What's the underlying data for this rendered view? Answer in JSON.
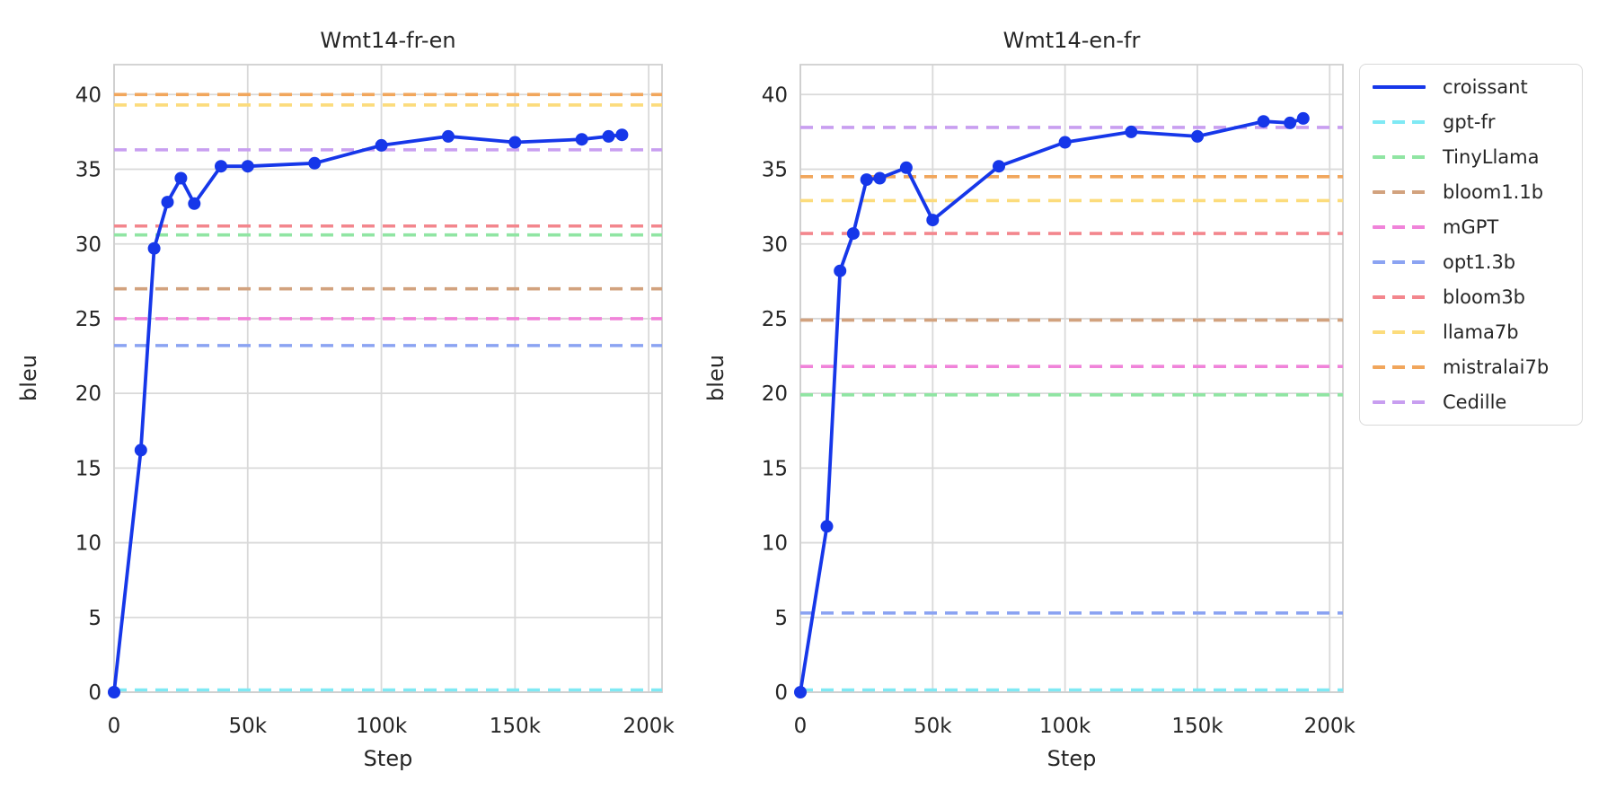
{
  "figure": {
    "background": "#ffffff",
    "grid_color": "#d9d9d9",
    "spine_color": "#cfcfcf",
    "tick_color": "#262626",
    "title_color": "#262626"
  },
  "chart_data": [
    {
      "type": "line",
      "title": "Wmt14-fr-en",
      "xlabel": "Step",
      "ylabel": "bleu",
      "xlim": [
        0,
        205000
      ],
      "ylim": [
        0,
        42
      ],
      "grid": true,
      "legend_position": "outside-right",
      "xticks": {
        "values": [
          0,
          50000,
          100000,
          150000,
          200000
        ],
        "labels": [
          "0",
          "50k",
          "100k",
          "150k",
          "200k"
        ]
      },
      "yticks": {
        "values": [
          0,
          5,
          10,
          15,
          20,
          25,
          30,
          35,
          40
        ],
        "labels": [
          "0",
          "5",
          "10",
          "15",
          "20",
          "25",
          "30",
          "35",
          "40"
        ]
      },
      "series": [
        {
          "name": "croissant",
          "color": "#1637e9",
          "style": "solid",
          "marker": "circle",
          "x": [
            0,
            10000,
            15000,
            20000,
            25000,
            30000,
            40000,
            50000,
            75000,
            100000,
            125000,
            150000,
            175000,
            185000,
            190000
          ],
          "y": [
            0,
            16.2,
            29.7,
            32.8,
            34.4,
            32.7,
            35.2,
            35.2,
            35.4,
            36.6,
            37.2,
            36.8,
            37.0,
            37.2,
            37.3
          ]
        }
      ],
      "baselines": [
        {
          "name": "gpt-fr",
          "color": "#7fe9f4",
          "y": 0.15
        },
        {
          "name": "TinyLlama",
          "color": "#90e5a3",
          "y": 30.6
        },
        {
          "name": "bloom1.1b",
          "color": "#d2a27e",
          "y": 27.0
        },
        {
          "name": "mGPT",
          "color": "#f083d9",
          "y": 25.0
        },
        {
          "name": "opt1.3b",
          "color": "#8ba3f2",
          "y": 23.2
        },
        {
          "name": "bloom3b",
          "color": "#f3868d",
          "y": 31.2
        },
        {
          "name": "llama7b",
          "color": "#fcdc7c",
          "y": 39.3
        },
        {
          "name": "mistralai7b",
          "color": "#f1a65c",
          "y": 40.0
        },
        {
          "name": "Cedille",
          "color": "#c89ef0",
          "y": 36.3
        }
      ]
    },
    {
      "type": "line",
      "title": "Wmt14-en-fr",
      "xlabel": "Step",
      "ylabel": "bleu",
      "xlim": [
        0,
        205000
      ],
      "ylim": [
        0,
        42
      ],
      "grid": true,
      "legend_position": "outside-right",
      "xticks": {
        "values": [
          0,
          50000,
          100000,
          150000,
          200000
        ],
        "labels": [
          "0",
          "50k",
          "100k",
          "150k",
          "200k"
        ]
      },
      "yticks": {
        "values": [
          0,
          5,
          10,
          15,
          20,
          25,
          30,
          35,
          40
        ],
        "labels": [
          "0",
          "5",
          "10",
          "15",
          "20",
          "25",
          "30",
          "35",
          "40"
        ]
      },
      "series": [
        {
          "name": "croissant",
          "color": "#1637e9",
          "style": "solid",
          "marker": "circle",
          "x": [
            0,
            10000,
            15000,
            20000,
            25000,
            30000,
            40000,
            50000,
            75000,
            100000,
            125000,
            150000,
            175000,
            185000,
            190000
          ],
          "y": [
            0,
            11.1,
            28.2,
            30.7,
            34.3,
            34.4,
            35.1,
            31.6,
            35.2,
            36.8,
            37.5,
            37.2,
            38.2,
            38.1,
            38.4
          ]
        }
      ],
      "baselines": [
        {
          "name": "gpt-fr",
          "color": "#7fe9f4",
          "y": 0.15
        },
        {
          "name": "TinyLlama",
          "color": "#90e5a3",
          "y": 19.9
        },
        {
          "name": "bloom1.1b",
          "color": "#d2a27e",
          "y": 24.9
        },
        {
          "name": "mGPT",
          "color": "#f083d9",
          "y": 21.8
        },
        {
          "name": "opt1.3b",
          "color": "#8ba3f2",
          "y": 5.3
        },
        {
          "name": "bloom3b",
          "color": "#f3868d",
          "y": 30.7
        },
        {
          "name": "llama7b",
          "color": "#fcdc7c",
          "y": 32.9
        },
        {
          "name": "mistralai7b",
          "color": "#f1a65c",
          "y": 34.5
        },
        {
          "name": "Cedille",
          "color": "#c89ef0",
          "y": 37.8
        }
      ]
    }
  ],
  "legend": {
    "items": [
      {
        "label": "croissant",
        "color": "#1637e9",
        "dashed": false
      },
      {
        "label": "gpt-fr",
        "color": "#7fe9f4",
        "dashed": true
      },
      {
        "label": "TinyLlama",
        "color": "#90e5a3",
        "dashed": true
      },
      {
        "label": "bloom1.1b",
        "color": "#d2a27e",
        "dashed": true
      },
      {
        "label": "mGPT",
        "color": "#f083d9",
        "dashed": true
      },
      {
        "label": "opt1.3b",
        "color": "#8ba3f2",
        "dashed": true
      },
      {
        "label": "bloom3b",
        "color": "#f3868d",
        "dashed": true
      },
      {
        "label": "llama7b",
        "color": "#fcdc7c",
        "dashed": true
      },
      {
        "label": "mistralai7b",
        "color": "#f1a65c",
        "dashed": true
      },
      {
        "label": "Cedille",
        "color": "#c89ef0",
        "dashed": true
      }
    ]
  }
}
